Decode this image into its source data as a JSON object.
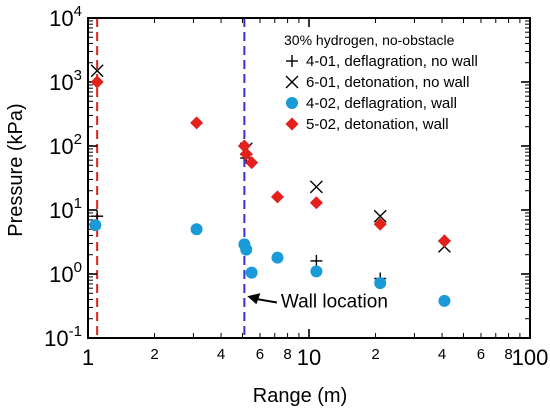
{
  "chart_data": {
    "type": "scatter",
    "xscale": "log",
    "yscale": "log",
    "xlim": [
      1,
      100
    ],
    "ylim": [
      0.1,
      10000
    ],
    "xlabel": "Range (m)",
    "ylabel": "Pressure (kPa)",
    "x_major_ticks": [
      {
        "value": 1,
        "label": "1"
      },
      {
        "value": 10,
        "label": "10"
      },
      {
        "value": 100,
        "label": "100"
      }
    ],
    "x_minor_ticks": [
      {
        "value": 2,
        "label": "2"
      },
      {
        "value": 4,
        "label": "4"
      },
      {
        "value": 6,
        "label": "6"
      },
      {
        "value": 8,
        "label": "8"
      },
      {
        "value": 20,
        "label": "2"
      },
      {
        "value": 40,
        "label": "4"
      },
      {
        "value": 60,
        "label": "6"
      },
      {
        "value": 80,
        "label": "8"
      }
    ],
    "y_ticks": [
      {
        "value": 0.1,
        "base": "10",
        "exp": "-1"
      },
      {
        "value": 1,
        "base": "10",
        "exp": "0"
      },
      {
        "value": 10,
        "base": "10",
        "exp": "1"
      },
      {
        "value": 100,
        "base": "10",
        "exp": "2"
      },
      {
        "value": 1000,
        "base": "10",
        "exp": "3"
      },
      {
        "value": 10000,
        "base": "10",
        "exp": "4"
      }
    ],
    "legend_title": "30% hydrogen, no-obstacle",
    "legend_position": "top-right",
    "series": [
      {
        "name": "4-01, deflagration, no wall",
        "marker": "plus",
        "color": "#000000",
        "points": [
          [
            1.1,
            8
          ],
          [
            5.2,
            65
          ],
          [
            10.8,
            1.6
          ],
          [
            21,
            0.85
          ],
          [
            41,
            3.3
          ]
        ]
      },
      {
        "name": "6-01, detonation, no wall",
        "marker": "x",
        "color": "#000000",
        "points": [
          [
            1.1,
            1500
          ],
          [
            5.2,
            90
          ],
          [
            10.8,
            23
          ],
          [
            21,
            8
          ],
          [
            41,
            2.7
          ]
        ]
      },
      {
        "name": "4-02, deflagration, wall",
        "marker": "circle",
        "color": "#1a9ad6",
        "points": [
          [
            1.08,
            5.8
          ],
          [
            3.1,
            5
          ],
          [
            5.1,
            2.9
          ],
          [
            5.2,
            2.4
          ],
          [
            5.5,
            1.05
          ],
          [
            7.2,
            1.8
          ],
          [
            10.8,
            1.1
          ],
          [
            21,
            0.72
          ],
          [
            41,
            0.38
          ]
        ]
      },
      {
        "name": "5-02, detonation, wall",
        "marker": "diamond",
        "color": "#e3201b",
        "points": [
          [
            1.1,
            1000
          ],
          [
            3.1,
            230
          ],
          [
            5.1,
            100
          ],
          [
            5.2,
            75
          ],
          [
            5.5,
            55
          ],
          [
            7.2,
            16
          ],
          [
            10.8,
            13
          ],
          [
            21,
            6
          ],
          [
            41,
            3.3
          ]
        ]
      }
    ],
    "reference_lines": [
      {
        "x": 1.1,
        "color": "#e3201b",
        "style": "dashed"
      },
      {
        "x": 5.1,
        "color": "#3a2fd0",
        "style": "dashed"
      }
    ],
    "annotation": {
      "text": "Wall location",
      "arrow_to_x": 5.1,
      "arrow_to_y": 0.45,
      "text_x": 9.0,
      "text_y": 0.3
    }
  }
}
